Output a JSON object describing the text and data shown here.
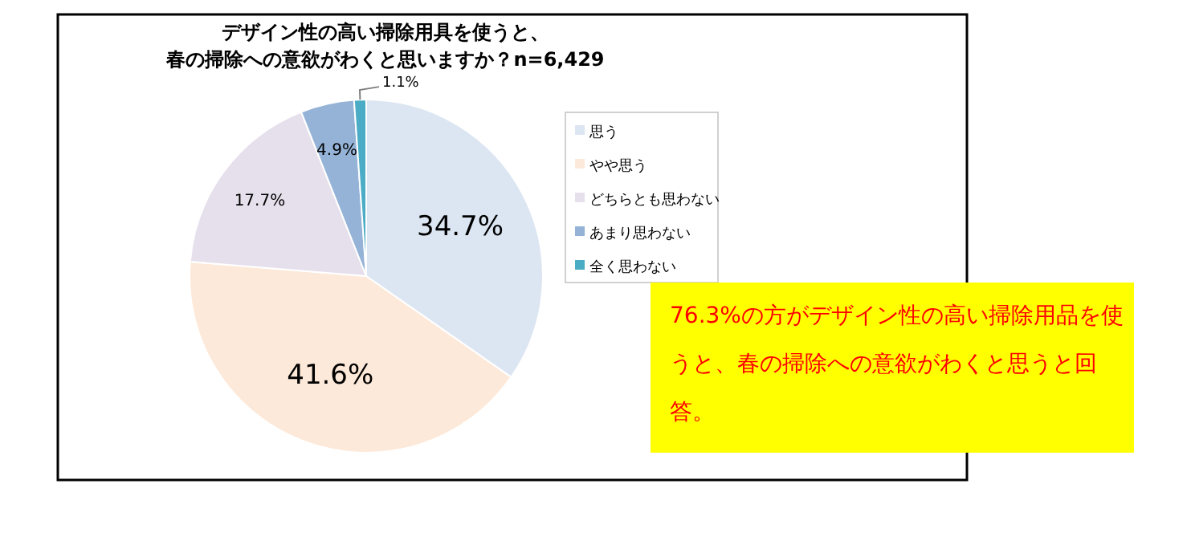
{
  "chart_data": {
    "type": "pie",
    "title": "デザイン性の高い掃除用具を使うと、",
    "subtitle": "春の掃除への意欲がわくと思いますか？n=6,429",
    "categories": [
      "思う",
      "やや思う",
      "どちらとも思わない",
      "あまり思わない",
      "全く思わない"
    ],
    "values": [
      34.7,
      41.6,
      17.7,
      4.9,
      1.1
    ],
    "colors": [
      "#dce6f2",
      "#fde9d9",
      "#e6e0ec",
      "#95b3d7",
      "#4bacc6"
    ],
    "value_labels": [
      "34.7%",
      "41.6%",
      "17.7%",
      "4.9%",
      "1.1%"
    ],
    "legend": "right",
    "annotations": [
      "76.3%の方がデザイン性の高い掃除用品を使うと、春の掃除への意欲がわくと思うと回答。"
    ]
  }
}
